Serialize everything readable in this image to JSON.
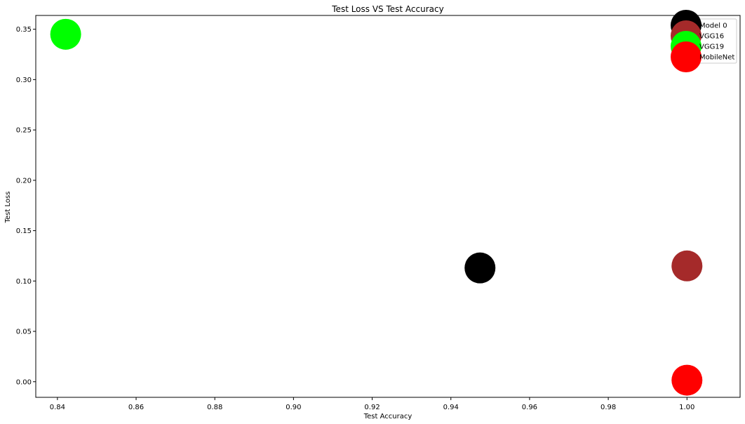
{
  "chart_data": {
    "type": "scatter",
    "title": "Test Loss VS Test Accuracy",
    "xlabel": "Test Accuracy",
    "ylabel": "Test Loss",
    "xlim": [
      0.8345,
      1.0135
    ],
    "ylim": [
      -0.0155,
      0.3637
    ],
    "xticks": [
      0.84,
      0.86,
      0.88,
      0.9,
      0.92,
      0.94,
      0.96,
      0.98,
      1.0
    ],
    "xtick_labels": [
      "0.84",
      "0.86",
      "0.88",
      "0.90",
      "0.92",
      "0.94",
      "0.96",
      "0.98",
      "1.00"
    ],
    "yticks": [
      0.0,
      0.05,
      0.1,
      0.15,
      0.2,
      0.25,
      0.3,
      0.35
    ],
    "ytick_labels": [
      "0.00",
      "0.05",
      "0.10",
      "0.15",
      "0.20",
      "0.25",
      "0.30",
      "0.35"
    ],
    "grid": false,
    "legend_position": "top-right",
    "series": [
      {
        "name": "Model 0",
        "color": "#000000",
        "x": [
          0.9474
        ],
        "y": [
          0.113
        ]
      },
      {
        "name": "VGG16",
        "color": "#a52a2a",
        "x": [
          1.0
        ],
        "y": [
          0.115
        ]
      },
      {
        "name": "VGG19",
        "color": "#00ff00",
        "x": [
          0.8421
        ],
        "y": [
          0.345
        ]
      },
      {
        "name": "MobileNet",
        "color": "#ff0000",
        "x": [
          1.0
        ],
        "y": [
          0.0015
        ]
      }
    ]
  }
}
